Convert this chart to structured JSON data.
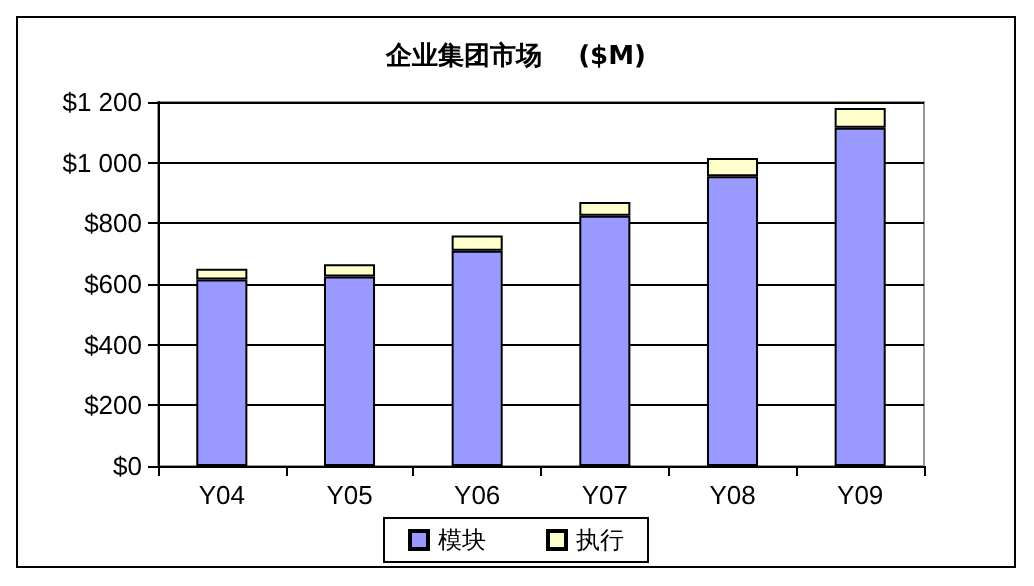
{
  "chart_data": {
    "type": "bar",
    "title": "企业集团市场    ($M)",
    "categories": [
      "Y04",
      "Y05",
      "Y06",
      "Y07",
      "Y08",
      "Y09"
    ],
    "series": [
      {
        "name": "模块",
        "color": "#9999ff",
        "values": [
          615,
          625,
          710,
          825,
          955,
          1115
        ]
      },
      {
        "name": "执行",
        "color": "#ffffcc",
        "values": [
          35,
          40,
          50,
          45,
          60,
          65
        ]
      }
    ],
    "stacked": true,
    "ylim": [
      0,
      1200
    ],
    "yticks": [
      {
        "value": 0,
        "label": "$0"
      },
      {
        "value": 200,
        "label": "$200"
      },
      {
        "value": 400,
        "label": "$400"
      },
      {
        "value": 600,
        "label": "$600"
      },
      {
        "value": 800,
        "label": "$800"
      },
      {
        "value": 1000,
        "label": "$1 000"
      },
      {
        "value": 1200,
        "label": "$1 200"
      }
    ],
    "grid": "y",
    "legend": "bottom"
  }
}
